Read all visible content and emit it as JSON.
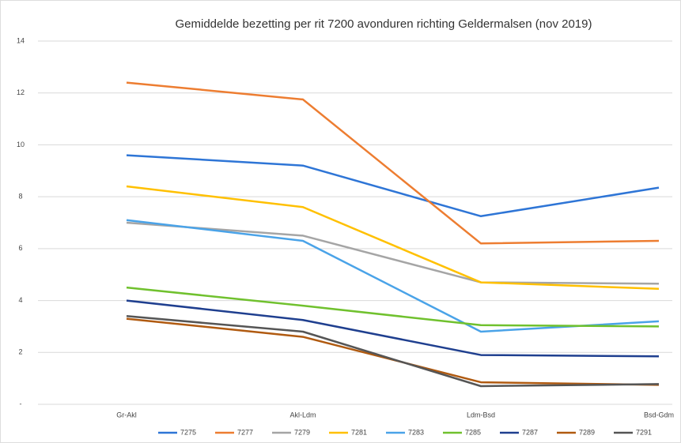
{
  "chart_data": {
    "type": "line",
    "title": "Gemiddelde bezetting per rit 7200 avonduren richting Geldermalsen (nov 2019)",
    "categories": [
      "Gr-Akl",
      "Akl-Ldm",
      "Ldm-Bsd",
      "Bsd-Gdm"
    ],
    "ylim": [
      0,
      14
    ],
    "yticks": [
      {
        "value": 0,
        "label": "-"
      },
      2,
      4,
      6,
      8,
      10,
      12,
      14
    ],
    "grid": true,
    "legend": "bottom",
    "series": [
      {
        "name": "7275",
        "color": "#2e75d6",
        "values": [
          9.6,
          9.2,
          7.25,
          8.35
        ]
      },
      {
        "name": "7277",
        "color": "#ed7d31",
        "values": [
          12.4,
          11.75,
          6.2,
          6.3
        ]
      },
      {
        "name": "7279",
        "color": "#a5a5a5",
        "values": [
          7.0,
          6.5,
          4.7,
          4.65
        ]
      },
      {
        "name": "7281",
        "color": "#ffc000",
        "values": [
          8.4,
          7.6,
          4.7,
          4.45
        ]
      },
      {
        "name": "7283",
        "color": "#4aa3e8",
        "values": [
          7.1,
          6.3,
          2.8,
          3.2
        ]
      },
      {
        "name": "7285",
        "color": "#70c12e",
        "values": [
          4.5,
          3.8,
          3.05,
          3.0
        ]
      },
      {
        "name": "7287",
        "color": "#1f3f8f",
        "values": [
          4.0,
          3.25,
          1.9,
          1.85
        ]
      },
      {
        "name": "7289",
        "color": "#b05a10",
        "values": [
          3.3,
          2.6,
          0.85,
          0.75
        ]
      },
      {
        "name": "7291",
        "color": "#555555",
        "values": [
          3.4,
          2.8,
          0.7,
          0.78
        ]
      }
    ]
  }
}
